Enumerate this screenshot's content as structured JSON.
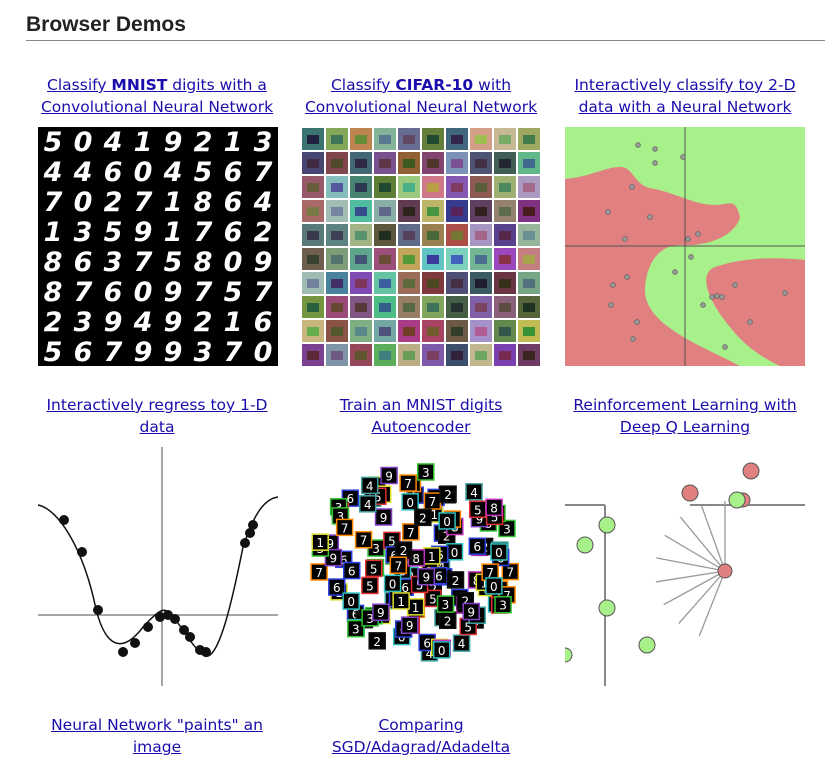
{
  "section": {
    "title": "Browser Demos"
  },
  "demos": {
    "mnist": {
      "pre": "Classify ",
      "bold": "MNIST",
      "post": " digits with a Convolutional Neural Network"
    },
    "cifar": {
      "pre": "Classify ",
      "bold": "CIFAR-10",
      "post": " with Convolutional Neural Network"
    },
    "toy2d": {
      "label": "Interactively classify toy 2-D data with a Neural Network"
    },
    "regress": {
      "label": "Interactively regress toy 1-D data"
    },
    "autoencoder": {
      "label": "Train an MNIST digits Autoencoder"
    },
    "rldqn": {
      "label": "Reinforcement Learning with Deep Q Learning"
    },
    "paint": {
      "label": "Neural Network \"paints\" an image"
    },
    "compare": {
      "label": "Comparing SGD/Adagrad/Adadelta"
    }
  },
  "thumbnails": {
    "mnist_rows": [
      "50419213",
      "44604567",
      "70271864",
      "13591762",
      "86375809",
      "87609757",
      "23949216",
      "56799370"
    ],
    "autoencoder_digits": [
      "5",
      "3",
      "6",
      "8",
      "0",
      "1",
      "2",
      "7",
      "9",
      "4"
    ]
  },
  "colors": {
    "link": "#1a0dab",
    "region_red": "#e08080",
    "region_green": "#a8f08a",
    "point_fill": "#999999",
    "rule": "#888888"
  }
}
